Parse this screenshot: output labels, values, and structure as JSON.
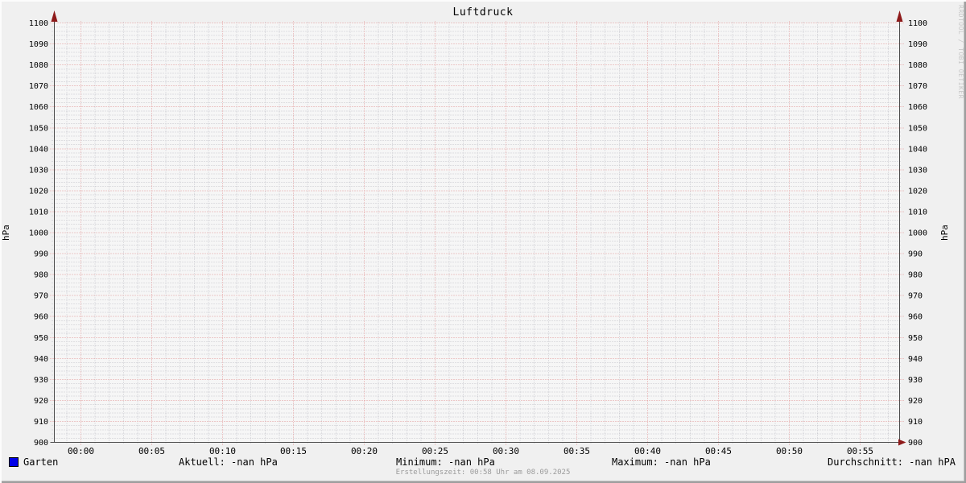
{
  "title": "Luftdruck",
  "watermark": "RRDTOOL / TOBI OETIKER",
  "footer": "Erstellungszeit: 00:58 Uhr am 08.09.2025",
  "legend": {
    "series": {
      "label": "Garten",
      "color": "#0000e8"
    },
    "stats": [
      {
        "text": "Aktuell: -nan hPa"
      },
      {
        "text": "Minimum: -nan hPa"
      },
      {
        "text": "Maximum: -nan hPa"
      },
      {
        "text": "Durchschnitt: -nan hPA"
      }
    ]
  },
  "chart_data": {
    "type": "line",
    "title": "Luftdruck",
    "ylabel": "hPa",
    "ylabel_right": "hPa",
    "ylim": [
      900,
      1100
    ],
    "y_ticks": [
      900,
      910,
      920,
      930,
      940,
      950,
      960,
      970,
      980,
      990,
      1000,
      1010,
      1020,
      1030,
      1040,
      1050,
      1060,
      1070,
      1080,
      1090,
      1100
    ],
    "y_minor_per_major": 5,
    "x_ticks": [
      "00:00",
      "00:05",
      "00:10",
      "00:15",
      "00:20",
      "00:25",
      "00:30",
      "00:35",
      "00:40",
      "00:45",
      "00:50",
      "00:55"
    ],
    "x_minor_per_major": 5,
    "grid": true,
    "legend_position": "bottom",
    "series": [
      {
        "name": "Garten",
        "color": "#0000e8",
        "values": []
      }
    ],
    "colors": {
      "background": "#f0f0f0",
      "canvas": "#f6f6f6",
      "minor_grid": "#c5c5cc",
      "major_grid": "#e39a9a",
      "axis": "#4d4d4d",
      "arrow": "#8e1a1a",
      "text": "#000000",
      "footer_text": "#9b9b9b",
      "watermark_text": "#c8c8c8"
    }
  }
}
